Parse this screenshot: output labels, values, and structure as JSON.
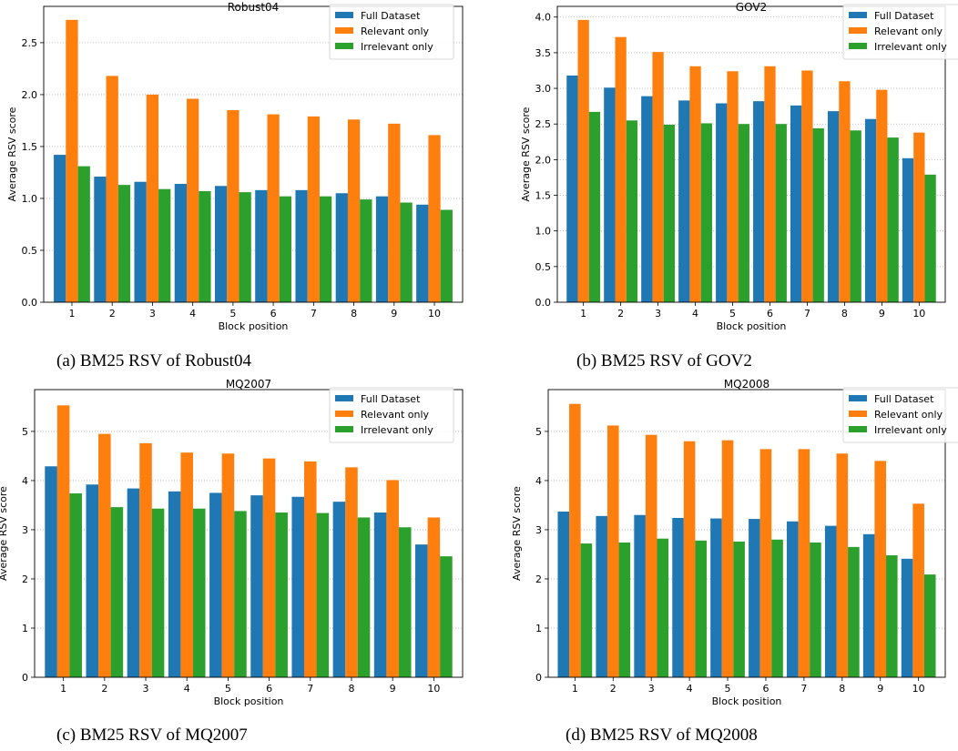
{
  "colors": {
    "full": "#1f77b4",
    "relevant": "#ff7f0e",
    "irrelevant": "#2ca02c",
    "grid": "#b0b0b0"
  },
  "chart_data": [
    {
      "type": "bar",
      "title": "Robust04",
      "xlabel": "Block position",
      "ylabel": "Average RSV score",
      "categories": [
        "1",
        "2",
        "3",
        "4",
        "5",
        "6",
        "7",
        "8",
        "9",
        "10"
      ],
      "ylim": [
        0,
        2.85
      ],
      "yticks": [
        "0.0",
        "0.5",
        "1.0",
        "1.5",
        "2.0",
        "2.5"
      ],
      "grid": "horizontal dotted",
      "legend_position": "top-right",
      "series": [
        {
          "name": "Full Dataset",
          "values": [
            1.42,
            1.21,
            1.16,
            1.14,
            1.12,
            1.08,
            1.08,
            1.05,
            1.02,
            0.94
          ]
        },
        {
          "name": "Relevant only",
          "values": [
            2.72,
            2.18,
            2.0,
            1.96,
            1.85,
            1.81,
            1.79,
            1.76,
            1.72,
            1.61
          ]
        },
        {
          "name": "Irrelevant only",
          "values": [
            1.31,
            1.13,
            1.09,
            1.07,
            1.06,
            1.02,
            1.02,
            0.99,
            0.96,
            0.89
          ]
        }
      ],
      "caption": "(a) BM25 RSV of Robust04"
    },
    {
      "type": "bar",
      "title": "GOV2",
      "xlabel": "Block position",
      "ylabel": "Average RSV score",
      "categories": [
        "1",
        "2",
        "3",
        "4",
        "5",
        "6",
        "7",
        "8",
        "9",
        "10"
      ],
      "ylim": [
        0,
        4.15
      ],
      "yticks": [
        "0.0",
        "0.5",
        "1.0",
        "1.5",
        "2.0",
        "2.5",
        "3.0",
        "3.5",
        "4.0"
      ],
      "grid": "horizontal dotted",
      "legend_position": "top-right",
      "series": [
        {
          "name": "Full Dataset",
          "values": [
            3.18,
            3.01,
            2.89,
            2.83,
            2.79,
            2.82,
            2.76,
            2.68,
            2.57,
            2.02
          ]
        },
        {
          "name": "Relevant only",
          "values": [
            3.96,
            3.72,
            3.51,
            3.31,
            3.24,
            3.31,
            3.25,
            3.1,
            2.98,
            2.38
          ]
        },
        {
          "name": "Irrelevant only",
          "values": [
            2.67,
            2.55,
            2.49,
            2.51,
            2.5,
            2.5,
            2.44,
            2.41,
            2.31,
            1.79
          ]
        }
      ],
      "caption": "(b) BM25 RSV of GOV2"
    },
    {
      "type": "bar",
      "title": "MQ2007",
      "xlabel": "Block position",
      "ylabel": "Average RSV score",
      "categories": [
        "1",
        "2",
        "3",
        "4",
        "5",
        "6",
        "7",
        "8",
        "9",
        "10"
      ],
      "ylim": [
        0,
        5.85
      ],
      "yticks": [
        "0",
        "1",
        "2",
        "3",
        "4",
        "5"
      ],
      "grid": "horizontal dotted",
      "legend_position": "top-right",
      "series": [
        {
          "name": "Full Dataset",
          "values": [
            4.29,
            3.92,
            3.84,
            3.78,
            3.75,
            3.7,
            3.67,
            3.57,
            3.35,
            2.7
          ]
        },
        {
          "name": "Relevant only",
          "values": [
            5.53,
            4.95,
            4.76,
            4.57,
            4.55,
            4.45,
            4.39,
            4.27,
            4.01,
            3.25
          ]
        },
        {
          "name": "Irrelevant only",
          "values": [
            3.74,
            3.46,
            3.43,
            3.43,
            3.38,
            3.35,
            3.34,
            3.25,
            3.05,
            2.46
          ]
        }
      ],
      "caption": "(c) BM25 RSV of MQ2007"
    },
    {
      "type": "bar",
      "title": "MQ2008",
      "xlabel": "Block position",
      "ylabel": "Average RSV score",
      "categories": [
        "1",
        "2",
        "3",
        "4",
        "5",
        "6",
        "7",
        "8",
        "9",
        "10"
      ],
      "ylim": [
        0,
        5.85
      ],
      "yticks": [
        "0",
        "1",
        "2",
        "3",
        "4",
        "5"
      ],
      "grid": "horizontal dotted",
      "legend_position": "top-right",
      "series": [
        {
          "name": "Full Dataset",
          "values": [
            3.37,
            3.28,
            3.3,
            3.24,
            3.23,
            3.22,
            3.17,
            3.08,
            2.91,
            2.41
          ]
        },
        {
          "name": "Relevant only",
          "values": [
            5.56,
            5.12,
            4.93,
            4.8,
            4.82,
            4.64,
            4.64,
            4.55,
            4.4,
            3.53
          ]
        },
        {
          "name": "Irrelevant only",
          "values": [
            2.72,
            2.74,
            2.82,
            2.78,
            2.76,
            2.8,
            2.74,
            2.65,
            2.48,
            2.09
          ]
        }
      ],
      "caption": "(d) BM25 RSV of MQ2008"
    }
  ]
}
